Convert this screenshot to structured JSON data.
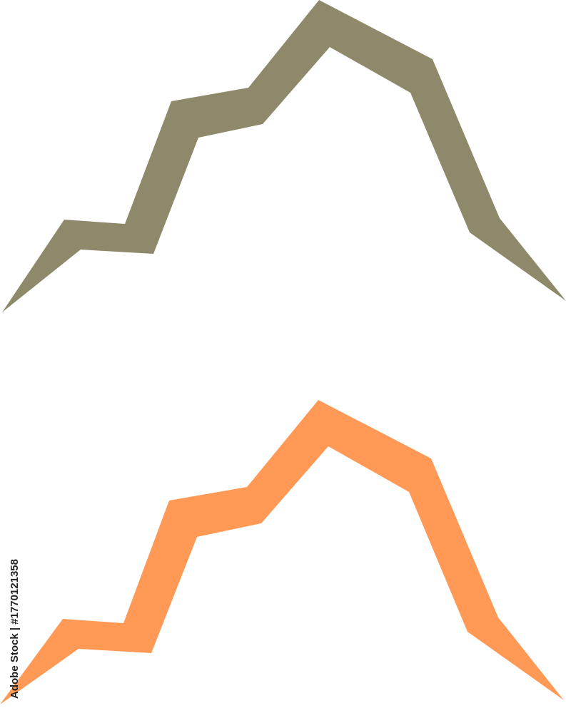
{
  "shapes": [
    {
      "name": "mountain-ridge-top",
      "color": "#8f896c"
    },
    {
      "name": "mountain-ridge-bottom",
      "color": "#ff9955"
    }
  ],
  "watermark": {
    "text": "Adobe Stock | #1770121358"
  }
}
